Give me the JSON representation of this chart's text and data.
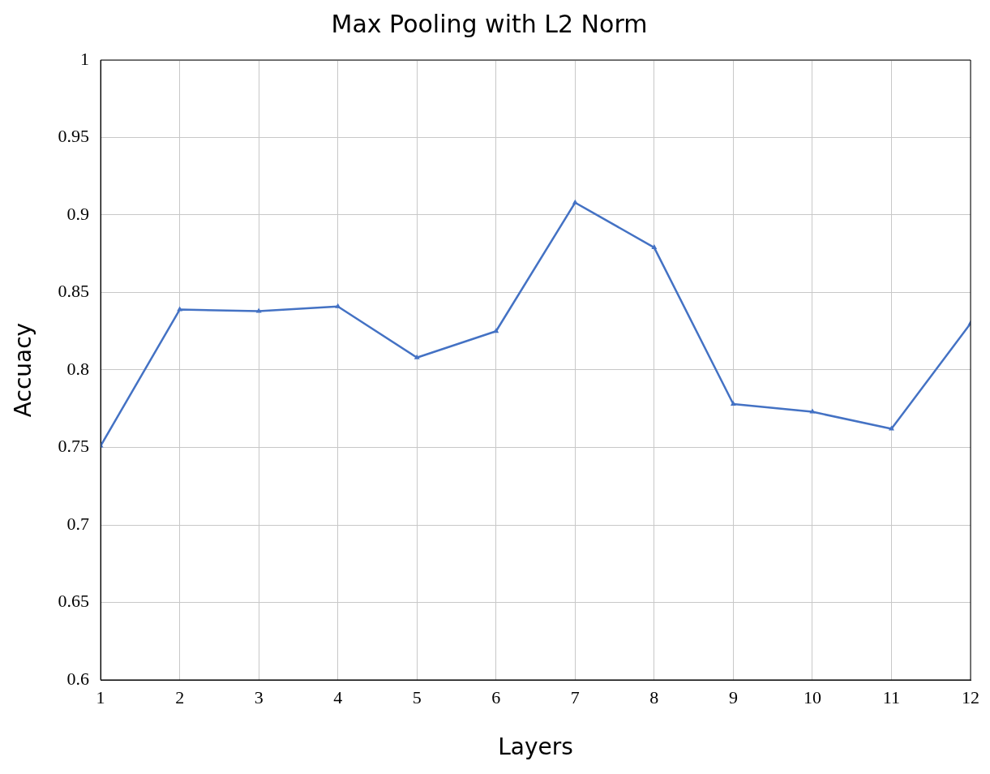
{
  "chart_data": {
    "type": "line",
    "title": "Max Pooling with L2 Norm",
    "xlabel": "Layers",
    "ylabel": "Accuacy",
    "x": [
      1,
      2,
      3,
      4,
      5,
      6,
      7,
      8,
      9,
      10,
      11,
      12
    ],
    "series": [
      {
        "color": "#4472c4",
        "values": [
          0.751,
          0.839,
          0.838,
          0.841,
          0.808,
          0.825,
          0.908,
          0.879,
          0.778,
          0.773,
          0.762,
          0.83
        ]
      }
    ],
    "xlim": [
      1,
      12
    ],
    "xticks": [
      1,
      2,
      3,
      4,
      5,
      6,
      7,
      8,
      9,
      10,
      11,
      12
    ],
    "ylim": [
      0.6,
      1
    ],
    "yticks": [
      0.6,
      0.65,
      0.7,
      0.75,
      0.8,
      0.85,
      0.9,
      0.95,
      1
    ],
    "grid": true,
    "legend": false,
    "marker": "triangle",
    "line_style": "solid"
  }
}
